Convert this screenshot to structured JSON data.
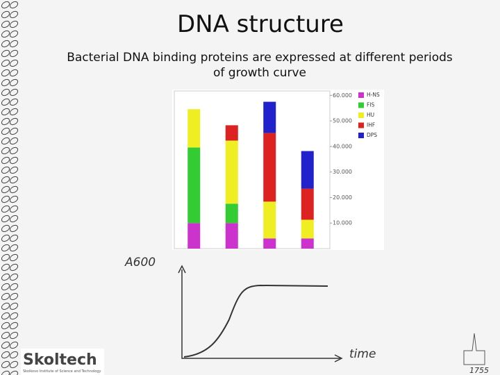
{
  "header": {
    "title": "DNA structure",
    "subtitle_line1": "Bacterial DNA binding proteins are expressed at different periods",
    "subtitle_line2": "of growth curve"
  },
  "chart_data": {
    "type": "stacked_bar",
    "categories": [
      null,
      null,
      null,
      null
    ],
    "series": [
      {
        "name": "H-NS",
        "color": "#cc33cc",
        "values": [
          10000,
          10000,
          4000,
          4000
        ]
      },
      {
        "name": "FIS",
        "color": "#33cc33",
        "values": [
          29600,
          7600,
          0,
          0
        ]
      },
      {
        "name": "HU",
        "color": "#eeee22",
        "values": [
          15000,
          24700,
          14400,
          7300
        ]
      },
      {
        "name": "IHF",
        "color": "#dd2222",
        "values": [
          0,
          6000,
          26900,
          12200
        ]
      },
      {
        "name": "DPS",
        "color": "#2222cc",
        "values": [
          0,
          0,
          12200,
          14700
        ]
      }
    ],
    "ylim": [
      0,
      62000
    ],
    "yticks": [
      {
        "value": 10000,
        "label": "10.000"
      },
      {
        "value": 20000,
        "label": "20.000"
      },
      {
        "value": 30000,
        "label": "30.000"
      },
      {
        "value": 40000,
        "label": "40.000"
      },
      {
        "value": 50000,
        "label": "50.000"
      },
      {
        "value": 60000,
        "label": "60.000"
      }
    ],
    "grid": false,
    "legend": "right"
  },
  "growth": {
    "y_label": "A600",
    "x_label": "time"
  },
  "footer": {
    "logo": "Skoltech",
    "logo_sub": "Skolkovo Institute of Science and Technology",
    "year": "1755"
  }
}
